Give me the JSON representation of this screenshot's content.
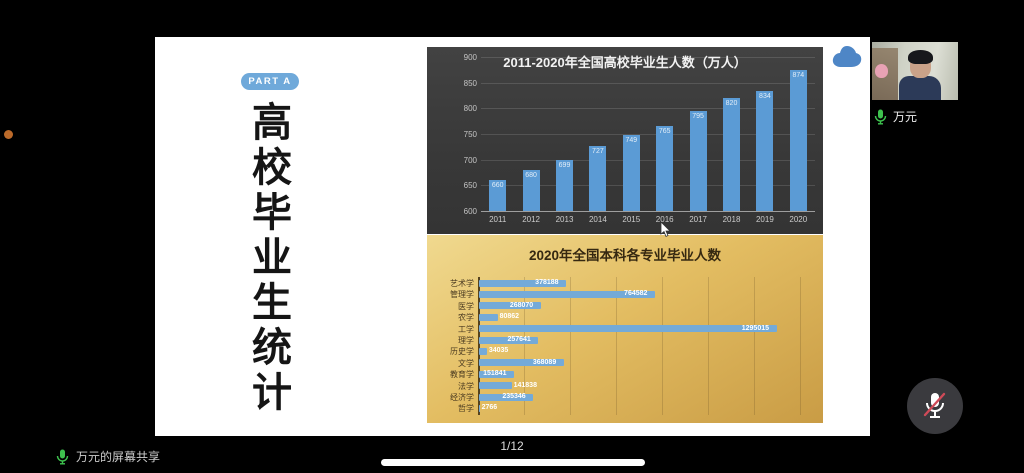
{
  "meeting": {
    "share_banner": "万元的屏幕共享",
    "page_indicator": "1/12",
    "participant_name": "万元"
  },
  "slide": {
    "part_badge": "PART A",
    "vertical_title": "高校毕业生统计"
  },
  "chart_data": [
    {
      "type": "bar",
      "title": "2011-2020年全国高校毕业生人数（万人）",
      "categories": [
        "2011",
        "2012",
        "2013",
        "2014",
        "2015",
        "2016",
        "2017",
        "2018",
        "2019",
        "2020"
      ],
      "values": [
        660,
        680,
        699,
        727,
        749,
        765,
        795,
        820,
        834,
        874
      ],
      "ylim": [
        600,
        900
      ],
      "yticks": [
        600,
        650,
        700,
        750,
        800,
        850,
        900
      ],
      "grid": true,
      "legend": false,
      "bar_color": "#5b9bd5",
      "bg_color": "#3a3a3a",
      "value_labels": true
    },
    {
      "type": "bar",
      "orientation": "horizontal",
      "title": "2020年全国本科各专业毕业人数",
      "categories": [
        "艺术学",
        "管理学",
        "医学",
        "农学",
        "工学",
        "理学",
        "历史学",
        "文学",
        "教育学",
        "法学",
        "经济学",
        "哲学"
      ],
      "values": [
        378188,
        764582,
        268070,
        80862,
        1295015,
        257641,
        34035,
        368089,
        151841,
        141838,
        235346,
        2766
      ],
      "xlim": [
        0,
        1400000
      ],
      "grid_step": 200000,
      "grid": true,
      "legend": false,
      "bar_color": "#74aad8",
      "bg_color": "#e3bd62",
      "value_labels": true
    }
  ],
  "icons": {
    "mic_on": "mic-on-icon",
    "mic_on_color": "#3ec24e",
    "mic_muted": "mic-muted-icon",
    "mic_muted_slash_color": "#cf4a58",
    "cloud_color": "#4e86c6"
  }
}
